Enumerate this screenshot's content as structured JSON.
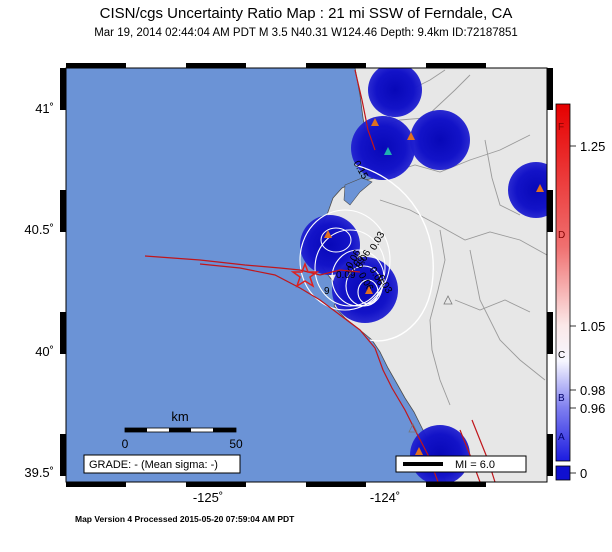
{
  "header": {
    "title": "CISN/cgs Uncertainty Ratio Map : 21 mi SSW of Ferndale, CA",
    "subtitle": "Mar 19, 2014 02:44:04 AM PDT   M 3.5   N40.31 W124.46   Depth: 9.4km   ID:72187851"
  },
  "axes": {
    "lat_ticks": [
      "41˚",
      "40.5˚",
      "40˚",
      "39.5˚"
    ],
    "lon_ticks": [
      "-125˚",
      "-124˚"
    ]
  },
  "map": {
    "colors": {
      "ocean": "#6b93d6",
      "land": "#e7e7e7",
      "faults": "#c0161b",
      "blob": "#0d0dbf",
      "contours": "#ffffff",
      "rivers": "#9a9a9a"
    },
    "epicenter_label": "epicenter-star",
    "contour_labels": [
      "0.15",
      "0.03",
      "0.06",
      "0.09",
      "0.09",
      "0.06",
      "0.06",
      "0.06",
      "0.03",
      "9"
    ]
  },
  "scale_bar": {
    "unit": "km",
    "min": "0",
    "max": "50"
  },
  "grade_box": {
    "text": "GRADE: - (Mean sigma: -)"
  },
  "mi_legend": {
    "text": "MI = 6.0"
  },
  "colorbar": {
    "values": [
      "1.25",
      "1.05",
      "0.98",
      "0.96",
      "0"
    ],
    "letters": [
      "F",
      "D",
      "C",
      "B",
      "A"
    ]
  },
  "footer": {
    "text": "Map Version 4 Processed 2015-05-20 07:59:04 AM PDT"
  }
}
